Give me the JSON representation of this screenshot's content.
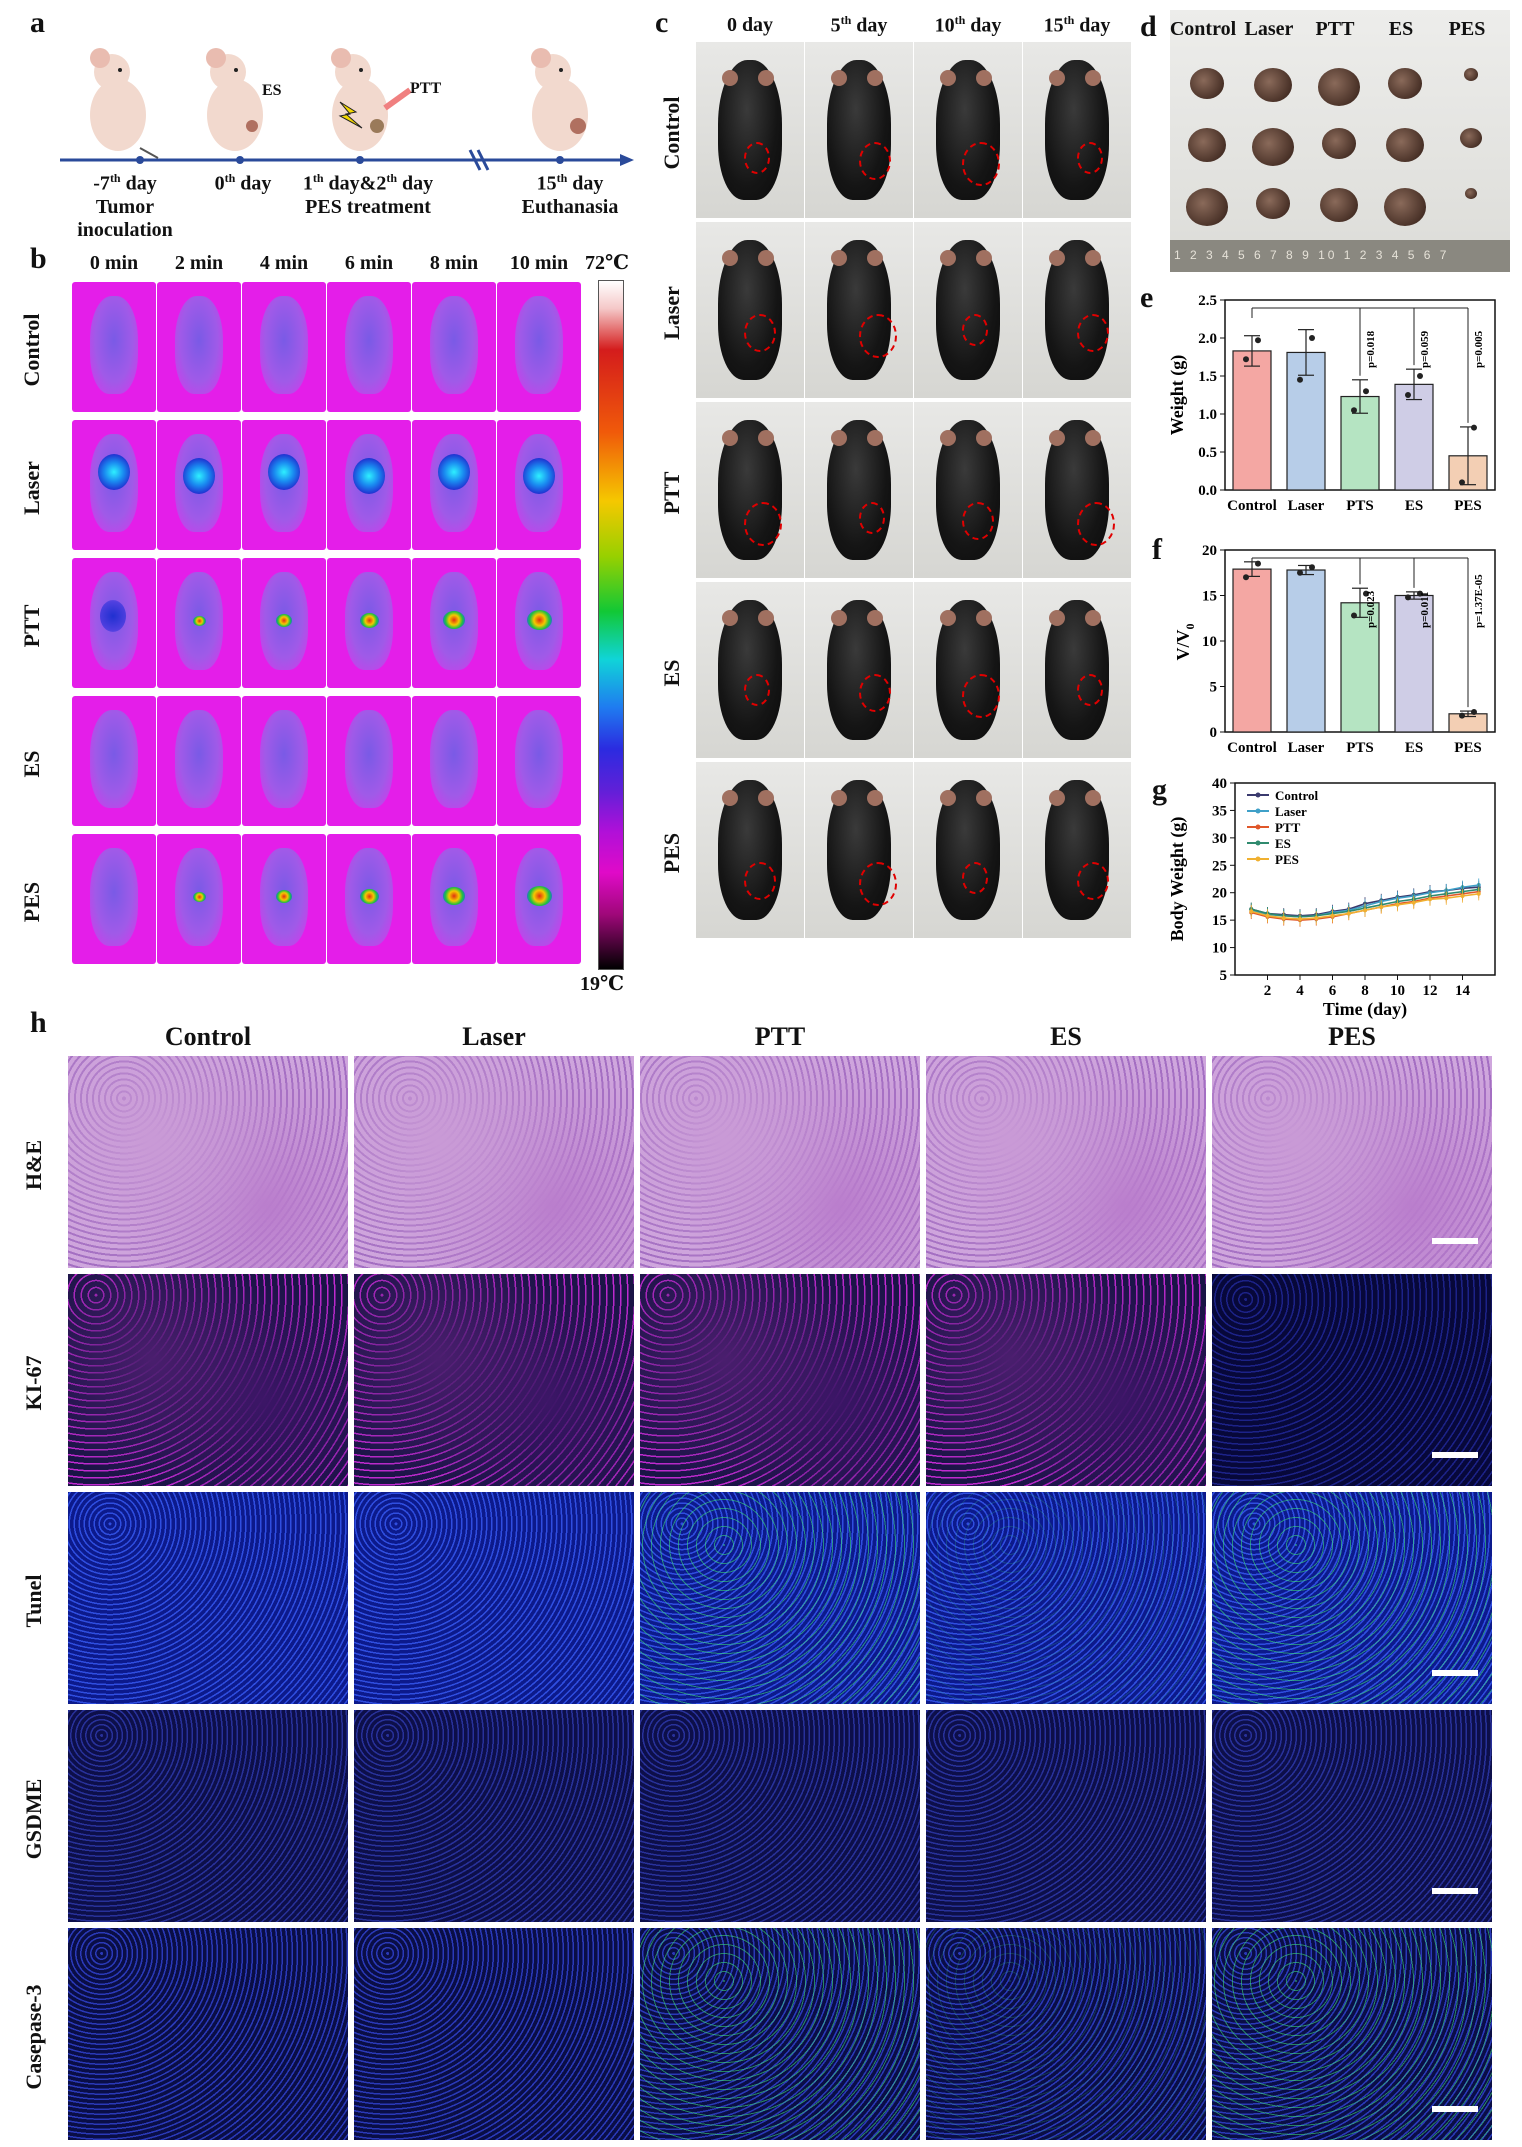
{
  "panel_labels": {
    "a": "a",
    "b": "b",
    "c": "c",
    "d": "d",
    "e": "e",
    "f": "f",
    "g": "g",
    "h": "h"
  },
  "timeline": {
    "neg7": {
      "day": "-7",
      "sup": "th",
      "rest": " day",
      "line2": "Tumor",
      "line3": "inoculation"
    },
    "day0": {
      "day": "0",
      "sup": "th",
      "rest": " day"
    },
    "day12": {
      "t1": "1",
      "sup1": "th",
      "t2": " day&2",
      "sup2": "th",
      "t3": " day",
      "line2": "PES treatment"
    },
    "day15": {
      "day": "15",
      "sup": "th",
      "rest": " day",
      "line2": "Euthanasia"
    },
    "es_label": "ES",
    "ptt_label": "PTT"
  },
  "thermal": {
    "times": [
      "0 min",
      "2 min",
      "4 min",
      "6 min",
      "8 min",
      "10 min"
    ],
    "rows": [
      "Control",
      "Laser",
      "PTT",
      "ES",
      "PES"
    ],
    "scale_max": "72℃",
    "scale_min": "19℃"
  },
  "photos": {
    "days": [
      {
        "n": "0",
        "sup": "",
        "rest": " day"
      },
      {
        "n": "5",
        "sup": "th",
        "rest": " day"
      },
      {
        "n": "10",
        "sup": "th",
        "rest": " day"
      },
      {
        "n": "15",
        "sup": "th",
        "rest": " day"
      }
    ],
    "rows": [
      "Control",
      "Laser",
      "PTT",
      "ES",
      "PES"
    ]
  },
  "tumors": {
    "groups": [
      "Control",
      "Laser",
      "PTT",
      "ES",
      "PES"
    ],
    "ruler": "1 2 3 4 5 6 7 8 9 10 1 2 3 4 5 6 7"
  },
  "colors": {
    "control": "#f4a7a3",
    "laser": "#b7cde8",
    "ptt": "#b5e4c2",
    "es": "#cfcde6",
    "pes": "#f3cfb4"
  },
  "chart_data": [
    {
      "type": "bar",
      "id": "e",
      "categories": [
        "Control",
        "Laser",
        "PTS",
        "ES",
        "PES"
      ],
      "values": [
        1.83,
        1.81,
        1.23,
        1.39,
        0.45
      ],
      "errors": [
        0.2,
        0.3,
        0.22,
        0.2,
        0.38
      ],
      "points": [
        [
          1.72,
          1.97
        ],
        [
          1.45,
          2.0
        ],
        [
          1.05,
          1.3
        ],
        [
          1.25,
          1.5
        ],
        [
          0.1,
          0.82
        ]
      ],
      "pvalues": [
        "",
        "",
        "p=0.018",
        "p=0.059",
        "p=0.005"
      ],
      "ylabel": "Weight (g)",
      "ylim": [
        0,
        2.5
      ],
      "yticks": [
        "0.0",
        "0.5",
        "1.0",
        "1.5",
        "2.0",
        "2.5"
      ]
    },
    {
      "type": "bar",
      "id": "f",
      "categories": [
        "Control",
        "Laser",
        "PTS",
        "ES",
        "PES"
      ],
      "values": [
        17.9,
        17.8,
        14.2,
        15.0,
        2.0
      ],
      "errors": [
        0.8,
        0.5,
        1.6,
        0.4,
        0.3
      ],
      "points": [
        [
          17.0,
          18.5
        ],
        [
          17.5,
          18.1
        ],
        [
          12.8,
          15.2
        ],
        [
          14.8,
          15.2
        ],
        [
          1.8,
          2.2
        ]
      ],
      "pvalues": [
        "",
        "",
        "p=0.023",
        "p=0.011",
        "p=1.37E-05"
      ],
      "ylabel_main": "V/V",
      "ylabel_sub": "0",
      "ylim": [
        0,
        20
      ],
      "yticks": [
        "0",
        "5",
        "10",
        "15",
        "20"
      ]
    },
    {
      "type": "line",
      "id": "g",
      "x": [
        1,
        2,
        3,
        4,
        5,
        6,
        7,
        8,
        9,
        10,
        11,
        12,
        13,
        14,
        15
      ],
      "series": [
        {
          "name": "Control",
          "color": "#3a3a6e",
          "values": [
            17.0,
            16.2,
            16.0,
            15.8,
            16.0,
            16.6,
            17.0,
            18.0,
            18.6,
            19.2,
            19.6,
            20.2,
            20.4,
            20.8,
            21.0
          ]
        },
        {
          "name": "Laser",
          "color": "#3fa0c8",
          "values": [
            16.8,
            16.0,
            15.8,
            15.6,
            15.8,
            16.4,
            16.8,
            17.6,
            18.4,
            19.0,
            19.4,
            20.0,
            20.4,
            21.0,
            21.4
          ]
        },
        {
          "name": "PTT",
          "color": "#e0572a",
          "values": [
            16.4,
            15.6,
            15.2,
            15.0,
            15.2,
            15.6,
            16.2,
            16.8,
            17.4,
            18.0,
            18.4,
            19.0,
            19.4,
            19.8,
            20.2
          ]
        },
        {
          "name": "ES",
          "color": "#2f8a6e",
          "values": [
            17.0,
            16.2,
            15.8,
            15.6,
            15.8,
            16.2,
            16.6,
            17.2,
            17.8,
            18.4,
            18.8,
            19.4,
            19.8,
            20.2,
            20.6
          ]
        },
        {
          "name": "PES",
          "color": "#f0b030",
          "values": [
            16.6,
            15.8,
            15.4,
            15.2,
            15.4,
            15.8,
            16.2,
            16.8,
            17.4,
            17.8,
            18.2,
            18.8,
            19.0,
            19.4,
            19.8
          ]
        }
      ],
      "xlabel": "Time (day)",
      "ylabel": "Body Weight (g)",
      "ylim": [
        5,
        40
      ],
      "yticks": [
        "5",
        "10",
        "15",
        "20",
        "25",
        "30",
        "35",
        "40"
      ],
      "xticks": [
        "2",
        "4",
        "6",
        "8",
        "10",
        "12",
        "14"
      ]
    }
  ],
  "histology": {
    "columns": [
      "Control",
      "Laser",
      "PTT",
      "ES",
      "PES"
    ],
    "rows": [
      "H&E",
      "KI-67",
      "Tunel",
      "GSDME",
      "Casepase-3"
    ]
  }
}
